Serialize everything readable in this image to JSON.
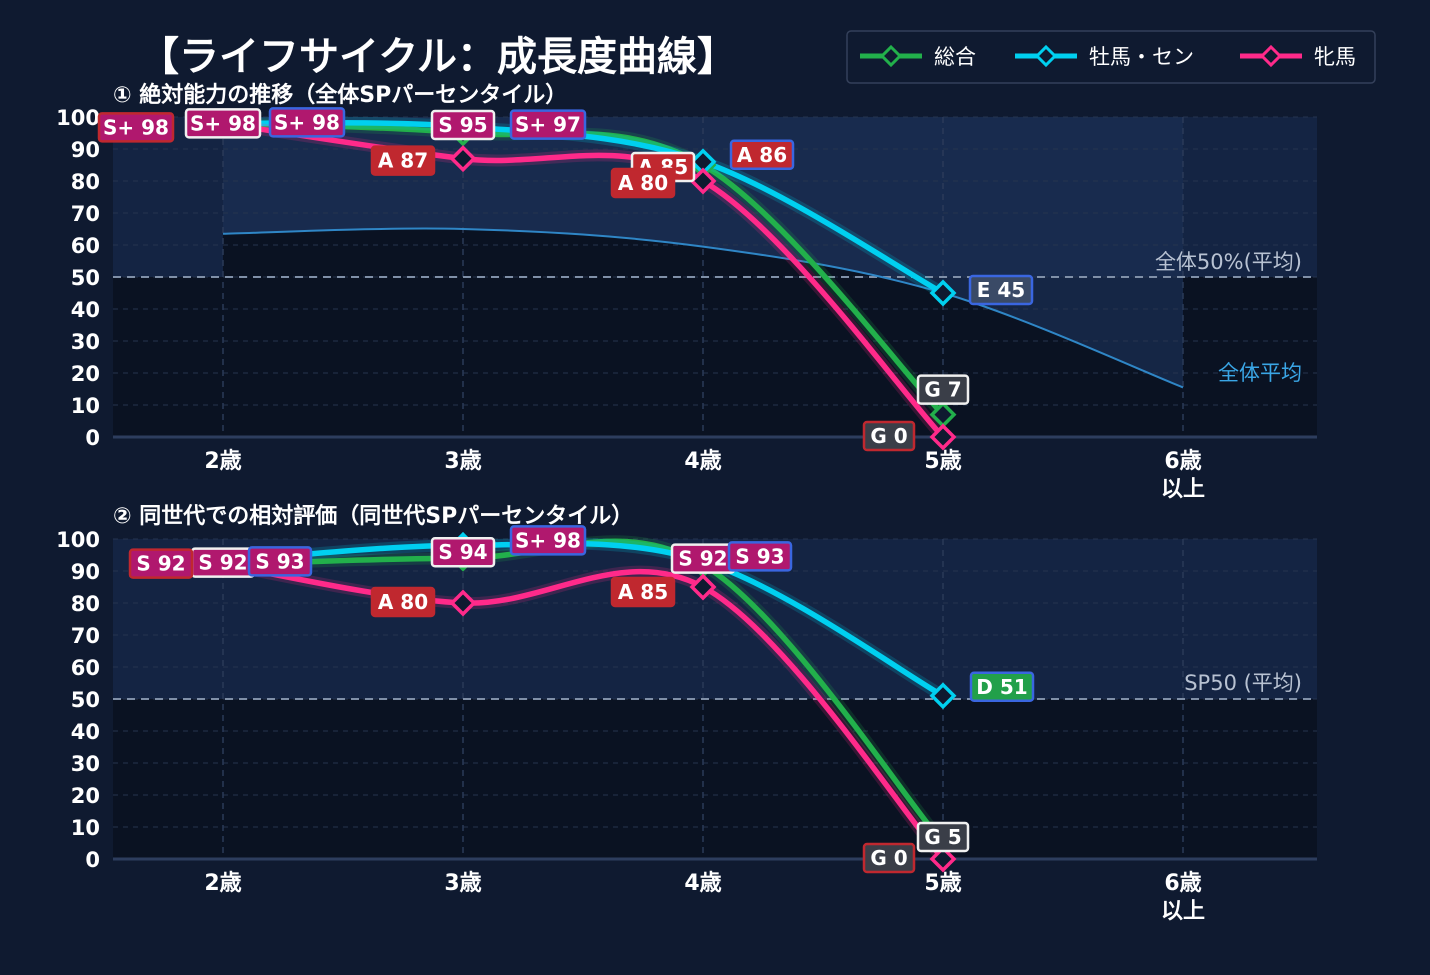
{
  "title": "【ライフサイクル：成長度曲線】",
  "legend": [
    {
      "name": "総合",
      "color": "#22b04b"
    },
    {
      "name": "牡馬・セン",
      "color": "#00d0f0"
    },
    {
      "name": "牝馬",
      "color": "#ff2a8a"
    }
  ],
  "chart_data": [
    {
      "type": "line",
      "title": "① 絶対能力の推移（全体SPパーセンタイル）",
      "categories": [
        "2歳",
        "3歳",
        "4歳",
        "5歳",
        "6歳\n以上"
      ],
      "ylim": [
        0,
        100
      ],
      "yticks": [
        0,
        10,
        20,
        30,
        40,
        50,
        60,
        70,
        80,
        90,
        100
      ],
      "reference": {
        "value": 50,
        "label": "全体50%(平均)"
      },
      "average": {
        "label": "全体平均",
        "x": [
          0,
          1,
          2,
          3,
          4
        ],
        "values": [
          63.5,
          65,
          59.5,
          45,
          15.5
        ]
      },
      "series": [
        {
          "name": "総合",
          "x": [
            0,
            1,
            2,
            3
          ],
          "values": [
            98,
            95,
            85,
            7
          ],
          "labels": [
            {
              "text": "S+ 98",
              "x": 0,
              "y": 98,
              "fill": "#b0186e",
              "border": "#f0f0f0"
            },
            {
              "text": "S 95",
              "x": 1,
              "y": 95,
              "fill": "#b0186e",
              "border": "#f0f0f0"
            },
            {
              "text": "A 85",
              "x": 2,
              "y": 85,
              "fill": "#c0282f",
              "border": "#f0f0f0"
            },
            {
              "text": "G 7",
              "x": 3,
              "y": 7,
              "fill": "#3a3e48",
              "border": "#f0f0f0"
            }
          ]
        },
        {
          "name": "牡馬・セン",
          "x": [
            0,
            1,
            2,
            3
          ],
          "values": [
            98,
            97,
            86,
            45
          ],
          "labels": [
            {
              "text": "S+ 98",
              "x": 0,
              "y": 98,
              "fill": "#b0186e",
              "border": "#3a66e0"
            },
            {
              "text": "S+ 97",
              "x": 1,
              "y": 97,
              "fill": "#b0186e",
              "border": "#3a66e0"
            },
            {
              "text": "A 86",
              "x": 2,
              "y": 86,
              "fill": "#c0282f",
              "border": "#3a66e0"
            },
            {
              "text": "E 45",
              "x": 3,
              "y": 45,
              "fill": "#3a4a66",
              "border": "#3a66e0"
            }
          ]
        },
        {
          "name": "牝馬",
          "x": [
            0,
            1,
            2,
            3
          ],
          "values": [
            98,
            87,
            80,
            0
          ],
          "labels": [
            {
              "text": "S+ 98",
              "x": 0,
              "y": 98,
              "fill": "#b0186e",
              "border": "#c0282f"
            },
            {
              "text": "A 87",
              "x": 1,
              "y": 87,
              "fill": "#c0282f",
              "border": "#c0282f"
            },
            {
              "text": "A 80",
              "x": 2,
              "y": 80,
              "fill": "#c0282f",
              "border": "#c0282f"
            },
            {
              "text": "G 0",
              "x": 3,
              "y": 0,
              "fill": "#3a3e48",
              "border": "#c0282f"
            }
          ]
        }
      ]
    },
    {
      "type": "line",
      "title": "② 同世代での相対評価（同世代SPパーセンタイル）",
      "categories": [
        "2歳",
        "3歳",
        "4歳",
        "5歳",
        "6歳\n以上"
      ],
      "ylim": [
        0,
        100
      ],
      "yticks": [
        0,
        10,
        20,
        30,
        40,
        50,
        60,
        70,
        80,
        90,
        100
      ],
      "reference": {
        "value": 50,
        "label": "SP50 (平均)"
      },
      "series": [
        {
          "name": "総合",
          "x": [
            0,
            1,
            2,
            3
          ],
          "values": [
            92,
            94,
            92,
            5
          ],
          "labels": [
            {
              "text": "S 92",
              "x": 0,
              "y": 92,
              "fill": "#b0186e",
              "border": "#f0f0f0"
            },
            {
              "text": "S 94",
              "x": 1,
              "y": 94,
              "fill": "#b0186e",
              "border": "#f0f0f0"
            },
            {
              "text": "S 92",
              "x": 2,
              "y": 92,
              "fill": "#b0186e",
              "border": "#f0f0f0"
            },
            {
              "text": "G 5",
              "x": 3,
              "y": 5,
              "fill": "#3a3e48",
              "border": "#f0f0f0"
            }
          ]
        },
        {
          "name": "牡馬・セン",
          "x": [
            0,
            1,
            2,
            3
          ],
          "values": [
            93,
            98,
            93,
            51
          ],
          "labels": [
            {
              "text": "S 93",
              "x": 0,
              "y": 93,
              "fill": "#b0186e",
              "border": "#3a66e0"
            },
            {
              "text": "S+ 98",
              "x": 1,
              "y": 98,
              "fill": "#b0186e",
              "border": "#3a66e0"
            },
            {
              "text": "S 93",
              "x": 2,
              "y": 93,
              "fill": "#b0186e",
              "border": "#3a66e0"
            },
            {
              "text": "D 51",
              "x": 3,
              "y": 51,
              "fill": "#22a04a",
              "border": "#3a66e0"
            }
          ]
        },
        {
          "name": "牝馬",
          "x": [
            0,
            1,
            2,
            3
          ],
          "values": [
            92,
            80,
            85,
            0
          ],
          "labels": [
            {
              "text": "S 92",
              "x": 0,
              "y": 92,
              "fill": "#b0186e",
              "border": "#c0282f"
            },
            {
              "text": "A 80",
              "x": 1,
              "y": 80,
              "fill": "#c0282f",
              "border": "#c0282f"
            },
            {
              "text": "A 85",
              "x": 2,
              "y": 85,
              "fill": "#c0282f",
              "border": "#c0282f"
            },
            {
              "text": "G 0",
              "x": 3,
              "y": 0,
              "fill": "#3a3e48",
              "border": "#c0282f"
            }
          ]
        }
      ]
    }
  ]
}
